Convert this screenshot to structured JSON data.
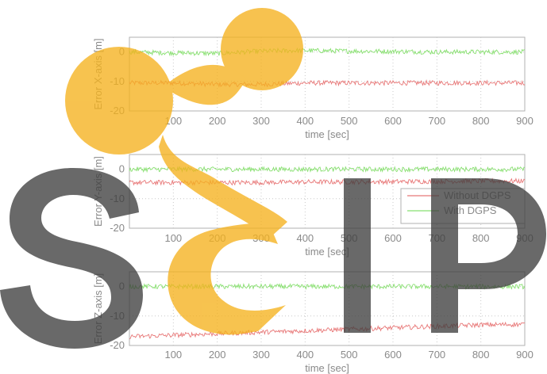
{
  "chart_data": [
    {
      "type": "line",
      "xlabel": "time [sec]",
      "ylabel": "Error X-axis [m]",
      "xlim": [
        0,
        900
      ],
      "ylim": [
        -20,
        5
      ],
      "xticks": [
        100,
        200,
        300,
        400,
        500,
        600,
        700,
        800,
        900
      ],
      "yticks": [
        0,
        -10,
        -20
      ],
      "grid": true,
      "series": [
        {
          "name": "Without DGPS",
          "color": "#e87878",
          "x": [
            0,
            100,
            200,
            300,
            400,
            500,
            600,
            700,
            800,
            900
          ],
          "values": [
            -10.5,
            -10.5,
            -11,
            -11,
            -10.5,
            -10.5,
            -10.5,
            -10.5,
            -10.5,
            -10.5
          ]
        },
        {
          "name": "With DGPS",
          "color": "#88e070",
          "x": [
            0,
            100,
            200,
            300,
            400,
            500,
            600,
            700,
            800,
            900
          ],
          "values": [
            0,
            -0.3,
            -0.5,
            0.3,
            0.5,
            0.3,
            0.2,
            0,
            0,
            0
          ]
        }
      ]
    },
    {
      "type": "line",
      "xlabel": "time [sec]",
      "ylabel": "Error Y-axis [m]",
      "xlim": [
        0,
        900
      ],
      "ylim": [
        -20,
        5
      ],
      "xticks": [
        100,
        200,
        300,
        400,
        500,
        600,
        700,
        800,
        900
      ],
      "yticks": [
        0,
        -10,
        -20
      ],
      "grid": true,
      "legend": {
        "position": "right",
        "entries": [
          "Without DGPS",
          "With DGPS"
        ]
      },
      "series": [
        {
          "name": "Without DGPS",
          "color": "#e87878",
          "x": [
            0,
            100,
            200,
            300,
            400,
            500,
            600,
            700,
            800,
            900
          ],
          "values": [
            -4.5,
            -4.5,
            -4.5,
            -4.5,
            -4.3,
            -4.3,
            -4.2,
            -4.1,
            -4,
            -4
          ]
        },
        {
          "name": "With DGPS",
          "color": "#88e070",
          "x": [
            0,
            100,
            200,
            300,
            400,
            500,
            600,
            700,
            800,
            900
          ],
          "values": [
            0,
            0,
            0,
            0,
            0,
            0,
            0,
            0,
            0,
            0
          ]
        }
      ]
    },
    {
      "type": "line",
      "xlabel": "time [sec]",
      "ylabel": "Error Z-axis [m]",
      "xlim": [
        0,
        900
      ],
      "ylim": [
        -20,
        5
      ],
      "xticks": [
        100,
        200,
        300,
        400,
        500,
        600,
        700,
        800,
        900
      ],
      "yticks": [
        0,
        -10,
        -20
      ],
      "grid": true,
      "series": [
        {
          "name": "Without DGPS",
          "color": "#e87878",
          "x": [
            0,
            100,
            200,
            300,
            400,
            500,
            600,
            700,
            800,
            900
          ],
          "values": [
            -17,
            -16.5,
            -16,
            -15.5,
            -15,
            -14.5,
            -14,
            -13.5,
            -13,
            -12.8
          ]
        },
        {
          "name": "With DGPS",
          "color": "#88e070",
          "x": [
            0,
            100,
            200,
            300,
            400,
            500,
            600,
            700,
            800,
            900
          ],
          "values": [
            0,
            0,
            0,
            0,
            0,
            0,
            0,
            0,
            0,
            0
          ]
        }
      ]
    }
  ],
  "watermark": {
    "text": "SCIP",
    "colors": {
      "letters": "#3f3f3f",
      "shape": "#f5b21e"
    }
  }
}
